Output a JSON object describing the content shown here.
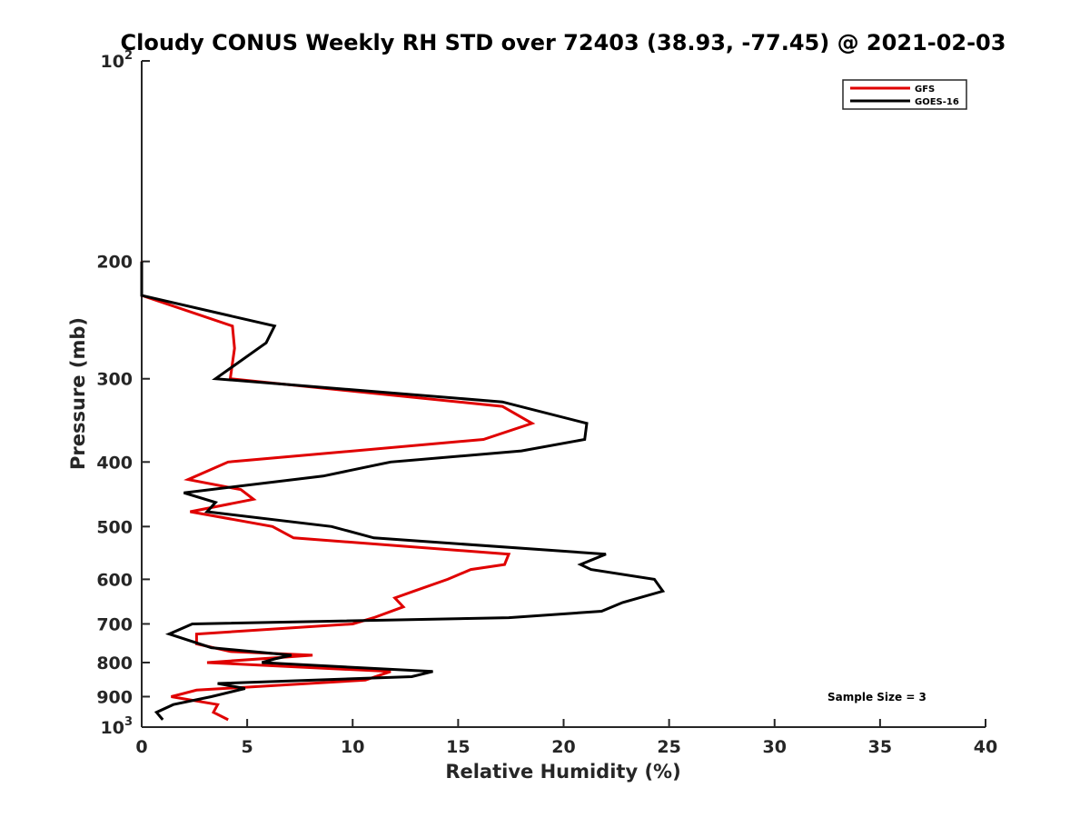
{
  "chart_data": {
    "type": "line",
    "title": "Cloudy CONUS Weekly RH STD over 72403 (38.93, -77.45) @ 2021-02-03",
    "xlabel": "Relative Humidity (%)",
    "ylabel": "Pressure (mb)",
    "xlim": [
      0,
      40
    ],
    "ylim": [
      100,
      1000
    ],
    "y_scale": "log",
    "y_reversed": true,
    "grid": false,
    "legend_position": "top-right",
    "xticks": [
      0,
      5,
      10,
      15,
      20,
      25,
      30,
      35,
      40
    ],
    "yticks": [
      {
        "value": 100,
        "label": "10",
        "sup": "2"
      },
      {
        "value": 200,
        "label": "200",
        "sup": ""
      },
      {
        "value": 300,
        "label": "300",
        "sup": ""
      },
      {
        "value": 400,
        "label": "400",
        "sup": ""
      },
      {
        "value": 500,
        "label": "500",
        "sup": ""
      },
      {
        "value": 600,
        "label": "600",
        "sup": ""
      },
      {
        "value": 700,
        "label": "700",
        "sup": ""
      },
      {
        "value": 800,
        "label": "800",
        "sup": ""
      },
      {
        "value": 900,
        "label": "900",
        "sup": ""
      },
      {
        "value": 1000,
        "label": "10",
        "sup": "3"
      }
    ],
    "series": [
      {
        "name": "GFS",
        "color": "#e00000",
        "points": [
          [
            0.0,
            200
          ],
          [
            0.0,
            225
          ],
          [
            4.3,
            250
          ],
          [
            4.4,
            270
          ],
          [
            4.2,
            300
          ],
          [
            17.1,
            330
          ],
          [
            18.5,
            350
          ],
          [
            16.2,
            370
          ],
          [
            4.1,
            400
          ],
          [
            2.2,
            425
          ],
          [
            4.7,
            440
          ],
          [
            5.3,
            455
          ],
          [
            2.3,
            475
          ],
          [
            6.2,
            500
          ],
          [
            7.2,
            520
          ],
          [
            17.4,
            550
          ],
          [
            17.2,
            570
          ],
          [
            15.6,
            580
          ],
          [
            14.5,
            600
          ],
          [
            12.9,
            625
          ],
          [
            12.0,
            640
          ],
          [
            12.4,
            660
          ],
          [
            11.0,
            685
          ],
          [
            10.0,
            700
          ],
          [
            2.6,
            725
          ],
          [
            2.6,
            750
          ],
          [
            4.2,
            770
          ],
          [
            8.1,
            780
          ],
          [
            3.1,
            800
          ],
          [
            11.8,
            825
          ],
          [
            10.6,
            850
          ],
          [
            2.6,
            880
          ],
          [
            1.4,
            900
          ],
          [
            3.6,
            925
          ],
          [
            3.4,
            950
          ],
          [
            4.1,
            975
          ]
        ]
      },
      {
        "name": "GOES-16",
        "color": "#000000",
        "points": [
          [
            0.0,
            200
          ],
          [
            0.0,
            225
          ],
          [
            6.3,
            250
          ],
          [
            5.9,
            265
          ],
          [
            3.5,
            300
          ],
          [
            17.1,
            325
          ],
          [
            21.1,
            350
          ],
          [
            21.0,
            370
          ],
          [
            18.0,
            385
          ],
          [
            11.8,
            400
          ],
          [
            8.6,
            420
          ],
          [
            2.0,
            445
          ],
          [
            3.5,
            460
          ],
          [
            3.1,
            475
          ],
          [
            9.0,
            500
          ],
          [
            11.0,
            520
          ],
          [
            22.0,
            550
          ],
          [
            20.8,
            570
          ],
          [
            21.3,
            580
          ],
          [
            24.3,
            600
          ],
          [
            24.7,
            625
          ],
          [
            22.8,
            650
          ],
          [
            21.8,
            670
          ],
          [
            17.4,
            685
          ],
          [
            2.4,
            700
          ],
          [
            1.3,
            725
          ],
          [
            3.3,
            760
          ],
          [
            7.1,
            780
          ],
          [
            6.3,
            790
          ],
          [
            5.7,
            800
          ],
          [
            13.8,
            825
          ],
          [
            12.8,
            840
          ],
          [
            3.6,
            860
          ],
          [
            4.9,
            875
          ],
          [
            3.3,
            900
          ],
          [
            1.5,
            925
          ],
          [
            0.7,
            950
          ],
          [
            1.0,
            975
          ]
        ]
      }
    ],
    "annotation": "Sample Size = 3"
  }
}
